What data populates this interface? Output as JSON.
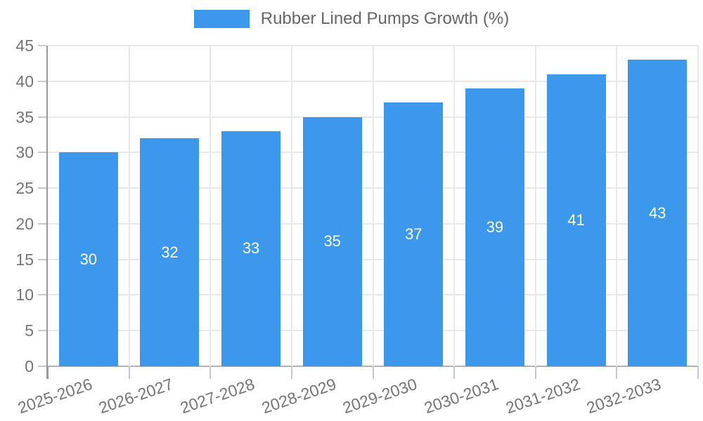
{
  "chart_data": {
    "type": "bar",
    "title": "Rubber Lined Pumps Growth (%)",
    "legend_label": "Rubber Lined Pumps Growth (%)",
    "legend_position": "top",
    "categories": [
      "2025-2026",
      "2026-2027",
      "2027-2028",
      "2028-2029",
      "2029-2030",
      "2030-2031",
      "2031-2032",
      "2032-2033"
    ],
    "values": [
      30,
      32,
      33,
      35,
      37,
      39,
      41,
      43
    ],
    "value_labels": [
      "30",
      "32",
      "33",
      "35",
      "37",
      "39",
      "41",
      "43"
    ],
    "value_labels_position": "inside-middle",
    "xlabel": "",
    "ylabel": "",
    "ylim": [
      0,
      45
    ],
    "ytick_step": 5,
    "ytick_labels": [
      "0",
      "5",
      "10",
      "15",
      "20",
      "25",
      "30",
      "35",
      "40",
      "45"
    ],
    "grid": true,
    "x_label_rotation_deg": -19,
    "colors": {
      "bar": "#3B98EB",
      "value_label": "#FFFFFF",
      "tick_label": "#757575",
      "legend_text": "#666666",
      "gridline": "#E8E8E8",
      "axis_line": "#999999",
      "zero_line": "#B3B3B3",
      "tick_mark": "#C8C8C8",
      "background": "#FFFFFF"
    }
  }
}
